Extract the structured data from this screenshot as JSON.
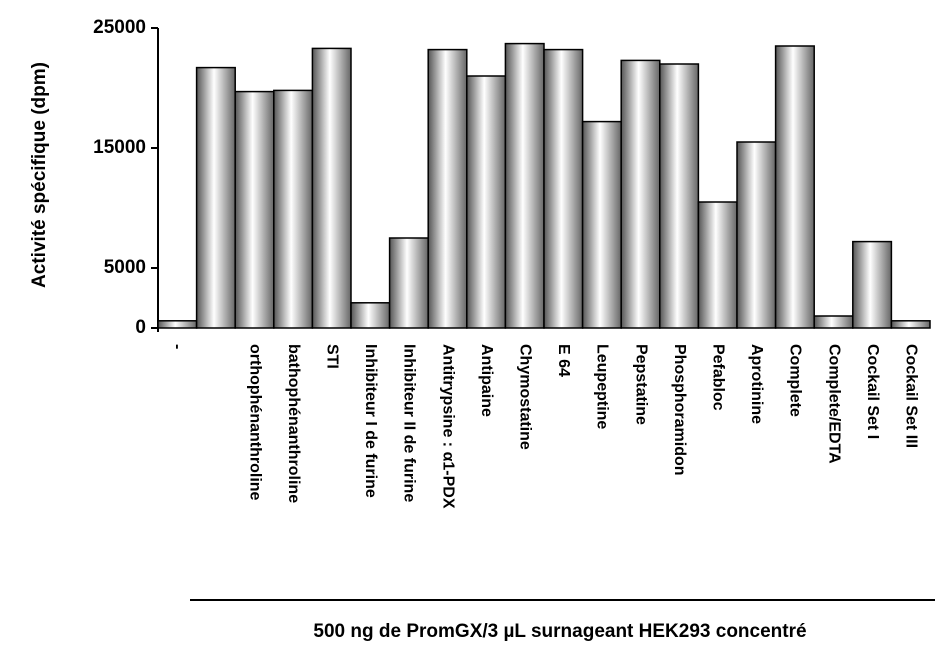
{
  "chart_data": {
    "type": "bar",
    "ylabel": "Activité spécifique (dpm)",
    "xlabel": "500 ng de PromGX/3 µL surnageant HEK293 concentré",
    "categories": [
      "-",
      null,
      "orthophénanthroline",
      "bathophénanthroline",
      "STI",
      "Inhibiteur I de furine",
      "Inhibiteur II de furine",
      "Antitrypsine : α1-PDX",
      "Antipaine",
      "Chymostatine",
      "E 64",
      "Leupeptine",
      "Pepstatine",
      "Phosphoramidon",
      "Pefabloc",
      "Aprotinine",
      "Complete",
      "Complete/EDTA",
      "Cockail Set I",
      "Cockail Set III"
    ],
    "values": [
      600,
      21700,
      19700,
      19800,
      23300,
      2100,
      7500,
      23200,
      21000,
      23700,
      23200,
      17200,
      22300,
      22000,
      10500,
      15500,
      23500,
      1000,
      7200,
      600
    ],
    "color": "#b8b8b8",
    "ylim": [
      0,
      25000
    ],
    "yticks": [
      0,
      5000,
      15000,
      25000
    ],
    "grid": false
  }
}
